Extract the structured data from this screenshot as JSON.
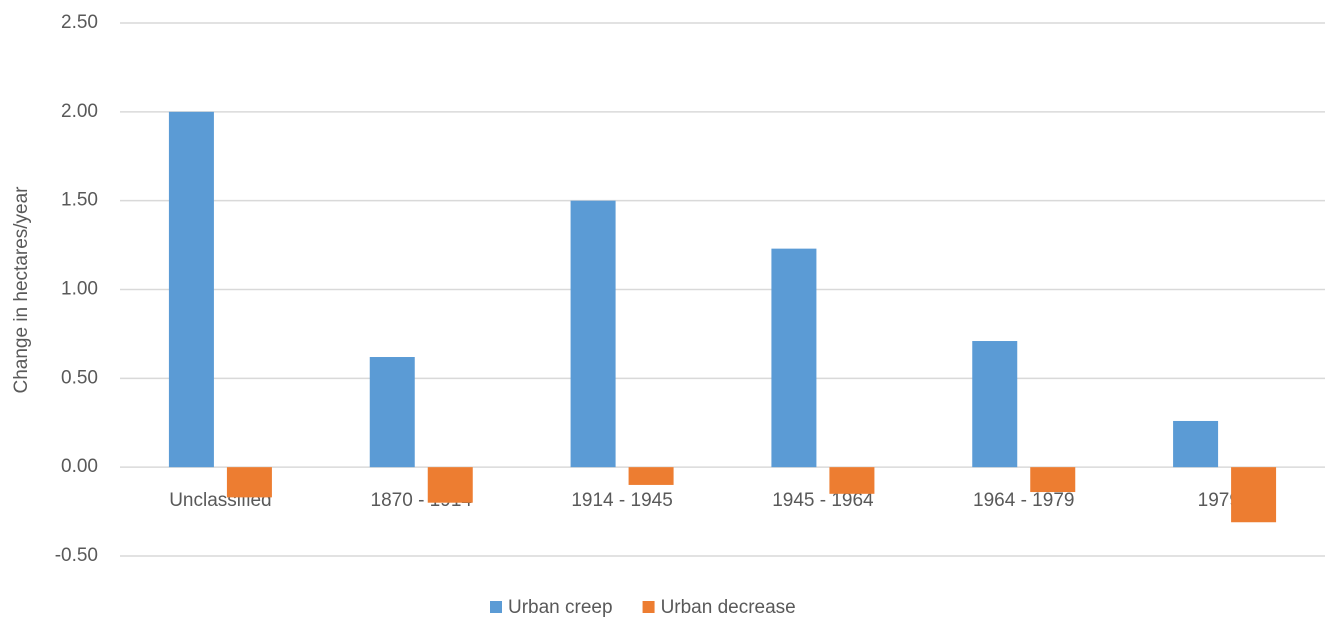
{
  "chart_data": {
    "type": "bar",
    "y_axis_label": "Change in hectares/year",
    "categories": [
      "Unclassified",
      "1870 - 1914",
      "1914 - 1945",
      "1945 - 1964",
      "1964 - 1979",
      "1979 -"
    ],
    "series": [
      {
        "name": "Urban creep",
        "color": "#5b9bd5",
        "values": [
          2.0,
          0.62,
          1.5,
          1.23,
          0.71,
          0.26
        ]
      },
      {
        "name": "Urban decrease",
        "color": "#ed7d31",
        "values": [
          -0.17,
          -0.2,
          -0.1,
          -0.15,
          -0.14,
          -0.31
        ]
      }
    ],
    "ylim": [
      -0.5,
      2.5
    ],
    "yticks": [
      {
        "value": -0.5,
        "label": "-0.50"
      },
      {
        "value": 0,
        "label": "0.00"
      },
      {
        "value": 0.5,
        "label": "0.50"
      },
      {
        "value": 1,
        "label": "1.00"
      },
      {
        "value": 1.5,
        "label": "1.50"
      },
      {
        "value": 2,
        "label": "2.00"
      },
      {
        "value": 2.5,
        "label": "2.50"
      }
    ],
    "grid": true,
    "legend": "bottom"
  }
}
